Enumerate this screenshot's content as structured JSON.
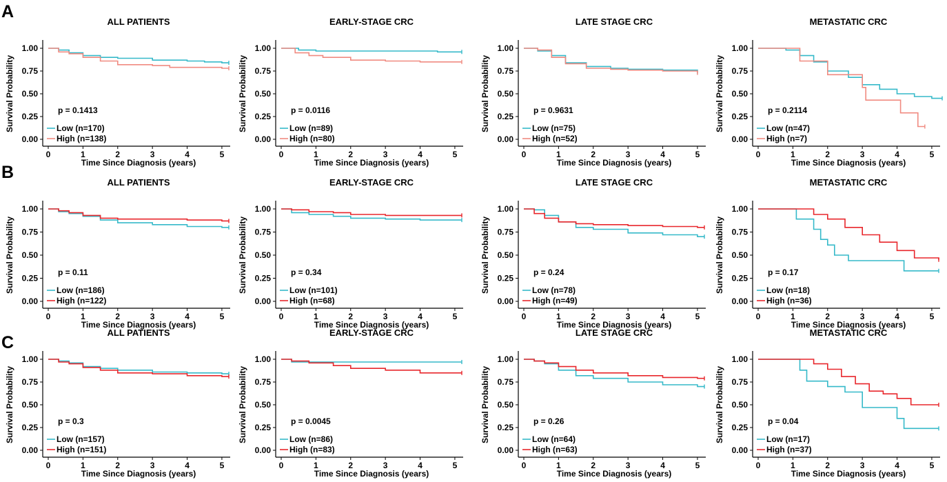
{
  "figure": {
    "panel_letters": [
      "A",
      "B",
      "C"
    ],
    "colors": {
      "low": "#35b9c9",
      "high_row_a": "#f08a80",
      "high_rows_bc": "#e8262b"
    },
    "x_axis_label": "Time Since Diagnosis (years)",
    "y_axis_label": "Survival Probability",
    "x_ticks": [
      "0",
      "1",
      "2",
      "3",
      "4",
      "5"
    ],
    "y_ticks": [
      "0.00",
      "0.25",
      "0.50",
      "0.75",
      "1.00"
    ]
  },
  "chart_data": [
    {
      "id": "A-all",
      "row": "A",
      "col": 0,
      "type": "line",
      "title": "ALL PATIENTS",
      "pvalue": "p = 0.1413",
      "xlabel": "Time Since Diagnosis (years)",
      "ylabel": "Survival Probability",
      "xlim": [
        0,
        5.2
      ],
      "ylim": [
        0,
        1
      ],
      "series": [
        {
          "name": "Low (n=170)",
          "color": "#35b9c9",
          "x": [
            0,
            0.3,
            0.6,
            1.0,
            1.5,
            2.0,
            3.0,
            4.0,
            4.5,
            5.0,
            5.2
          ],
          "y": [
            1.0,
            0.98,
            0.95,
            0.92,
            0.9,
            0.89,
            0.87,
            0.86,
            0.85,
            0.84,
            0.84
          ]
        },
        {
          "name": "High (n=138)",
          "color": "#f08a80",
          "x": [
            0,
            0.3,
            0.6,
            1.0,
            1.5,
            2.0,
            3.0,
            3.5,
            4.0,
            5.0,
            5.2
          ],
          "y": [
            1.0,
            0.96,
            0.94,
            0.9,
            0.86,
            0.82,
            0.81,
            0.79,
            0.79,
            0.78,
            0.78
          ]
        }
      ]
    },
    {
      "id": "A-early",
      "row": "A",
      "col": 1,
      "type": "line",
      "title": "EARLY-STAGE CRC",
      "pvalue": "p = 0.0116",
      "xlabel": "Time Since Diagnosis (years)",
      "ylabel": "Survival Probability",
      "xlim": [
        0,
        5.2
      ],
      "ylim": [
        0,
        1
      ],
      "series": [
        {
          "name": "Low (n=89)",
          "color": "#35b9c9",
          "x": [
            0,
            0.5,
            1.0,
            2.0,
            3.0,
            4.5,
            5.2
          ],
          "y": [
            1.0,
            0.98,
            0.97,
            0.97,
            0.97,
            0.96,
            0.96
          ]
        },
        {
          "name": "High (n=80)",
          "color": "#f08a80",
          "x": [
            0,
            0.4,
            0.8,
            1.2,
            2.0,
            3.0,
            4.0,
            5.2
          ],
          "y": [
            1.0,
            0.95,
            0.92,
            0.9,
            0.87,
            0.86,
            0.85,
            0.85
          ]
        }
      ]
    },
    {
      "id": "A-late",
      "row": "A",
      "col": 2,
      "type": "line",
      "title": "LATE STAGE CRC",
      "pvalue": "p = 0.9631",
      "xlabel": "Time Since Diagnosis (years)",
      "ylabel": "Survival Probability",
      "xlim": [
        0,
        5.2
      ],
      "ylim": [
        0,
        1
      ],
      "series": [
        {
          "name": "Low (n=75)",
          "color": "#35b9c9",
          "x": [
            0,
            0.4,
            0.8,
            1.2,
            1.8,
            2.5,
            3.0,
            4.0,
            5.0
          ],
          "y": [
            1.0,
            0.97,
            0.92,
            0.84,
            0.8,
            0.78,
            0.77,
            0.76,
            0.74
          ]
        },
        {
          "name": "High (n=52)",
          "color": "#f08a80",
          "x": [
            0,
            0.4,
            0.8,
            1.2,
            1.8,
            2.5,
            3.0,
            4.0,
            5.0
          ],
          "y": [
            1.0,
            0.98,
            0.9,
            0.83,
            0.78,
            0.77,
            0.76,
            0.75,
            0.73
          ]
        }
      ]
    },
    {
      "id": "A-meta",
      "row": "A",
      "col": 3,
      "type": "line",
      "title": "METASTATIC CRC",
      "pvalue": "p = 0.2114",
      "xlabel": "Time Since Diagnosis (years)",
      "ylabel": "Survival Probability",
      "xlim": [
        0,
        5.2
      ],
      "ylim": [
        0,
        1
      ],
      "series": [
        {
          "name": "Low (n=47)",
          "color": "#35b9c9",
          "x": [
            0,
            0.8,
            1.2,
            1.6,
            2.0,
            2.6,
            3.0,
            3.5,
            4.0,
            4.5,
            5.0,
            5.3
          ],
          "y": [
            1.0,
            0.98,
            0.92,
            0.85,
            0.75,
            0.68,
            0.6,
            0.55,
            0.5,
            0.47,
            0.45,
            0.45
          ]
        },
        {
          "name": "High (n=7)",
          "color": "#f08a80",
          "x": [
            0,
            1.1,
            1.2,
            2.0,
            2.9,
            3.0,
            3.1,
            3.9,
            4.1,
            4.6,
            4.8
          ],
          "y": [
            1.0,
            1.0,
            0.86,
            0.71,
            0.71,
            0.57,
            0.43,
            0.43,
            0.29,
            0.14,
            0.14
          ]
        }
      ]
    },
    {
      "id": "B-all",
      "row": "B",
      "col": 0,
      "type": "line",
      "title": "ALL PATIENTS",
      "pvalue": "p = 0.11",
      "xlabel": "Time Since Diagnosis (years)",
      "ylabel": "Survival Probability",
      "xlim": [
        0,
        5.2
      ],
      "ylim": [
        0,
        1
      ],
      "series": [
        {
          "name": "Low (n=186)",
          "color": "#35b9c9",
          "x": [
            0,
            0.3,
            0.6,
            1.0,
            1.5,
            2.0,
            3.0,
            4.0,
            5.0,
            5.2
          ],
          "y": [
            1.0,
            0.97,
            0.95,
            0.92,
            0.88,
            0.85,
            0.83,
            0.81,
            0.8,
            0.8
          ]
        },
        {
          "name": "High (n=122)",
          "color": "#e8262b",
          "x": [
            0,
            0.3,
            0.6,
            1.0,
            1.5,
            2.0,
            3.0,
            4.0,
            5.0,
            5.2
          ],
          "y": [
            1.0,
            0.98,
            0.96,
            0.93,
            0.9,
            0.89,
            0.89,
            0.88,
            0.87,
            0.87
          ]
        }
      ]
    },
    {
      "id": "B-early",
      "row": "B",
      "col": 1,
      "type": "line",
      "title": "EARLY-STAGE CRC",
      "pvalue": "p = 0.34",
      "xlabel": "Time Since Diagnosis (years)",
      "ylabel": "Survival Probability",
      "xlim": [
        0,
        5.2
      ],
      "ylim": [
        0,
        1
      ],
      "series": [
        {
          "name": "Low (n=101)",
          "color": "#35b9c9",
          "x": [
            0,
            0.3,
            0.8,
            1.5,
            2.0,
            3.0,
            4.0,
            5.2
          ],
          "y": [
            1.0,
            0.96,
            0.94,
            0.92,
            0.9,
            0.89,
            0.88,
            0.88
          ]
        },
        {
          "name": "High (n=68)",
          "color": "#e8262b",
          "x": [
            0,
            0.3,
            0.8,
            1.5,
            2.0,
            3.0,
            4.0,
            5.2
          ],
          "y": [
            1.0,
            0.99,
            0.97,
            0.96,
            0.94,
            0.93,
            0.93,
            0.93
          ]
        }
      ]
    },
    {
      "id": "B-late",
      "row": "B",
      "col": 2,
      "type": "line",
      "title": "LATE STAGE CRC",
      "pvalue": "p = 0.24",
      "xlabel": "Time Since Diagnosis (years)",
      "ylabel": "Survival Probability",
      "xlim": [
        0,
        5.2
      ],
      "ylim": [
        0,
        1
      ],
      "series": [
        {
          "name": "Low (n=78)",
          "color": "#35b9c9",
          "x": [
            0,
            0.3,
            0.6,
            1.0,
            1.5,
            2.0,
            3.0,
            4.0,
            5.0,
            5.2
          ],
          "y": [
            1.0,
            0.99,
            0.93,
            0.86,
            0.8,
            0.78,
            0.74,
            0.72,
            0.7,
            0.7
          ]
        },
        {
          "name": "High (n=49)",
          "color": "#e8262b",
          "x": [
            0,
            0.3,
            0.6,
            1.0,
            1.5,
            2.0,
            3.0,
            4.0,
            5.0,
            5.2
          ],
          "y": [
            1.0,
            0.95,
            0.9,
            0.86,
            0.84,
            0.83,
            0.82,
            0.81,
            0.8,
            0.8
          ]
        }
      ]
    },
    {
      "id": "B-meta",
      "row": "B",
      "col": 3,
      "type": "line",
      "title": "METASTATIC CRC",
      "pvalue": "p = 0.17",
      "xlabel": "Time Since Diagnosis (years)",
      "ylabel": "Survival Probability",
      "xlim": [
        0,
        5.2
      ],
      "ylim": [
        0,
        1
      ],
      "series": [
        {
          "name": "Low (n=18)",
          "color": "#35b9c9",
          "x": [
            0,
            1.0,
            1.1,
            1.6,
            1.8,
            2.0,
            2.2,
            2.6,
            3.9,
            4.2,
            5.2
          ],
          "y": [
            1.0,
            1.0,
            0.89,
            0.78,
            0.67,
            0.61,
            0.5,
            0.44,
            0.44,
            0.33,
            0.33
          ]
        },
        {
          "name": "High (n=36)",
          "color": "#e8262b",
          "x": [
            0,
            1.2,
            1.6,
            2.0,
            2.5,
            3.0,
            3.5,
            4.0,
            4.5,
            5.2
          ],
          "y": [
            1.0,
            1.0,
            0.94,
            0.89,
            0.8,
            0.72,
            0.64,
            0.55,
            0.47,
            0.45
          ]
        }
      ]
    },
    {
      "id": "C-all",
      "row": "C",
      "col": 0,
      "type": "line",
      "title": "ALL PATIENTS",
      "pvalue": "p = 0.3",
      "xlabel": "Time Since Diagnosis (years)",
      "ylabel": "Survival Probability",
      "xlim": [
        0,
        5.2
      ],
      "ylim": [
        0,
        1
      ],
      "series": [
        {
          "name": "Low (n=157)",
          "color": "#35b9c9",
          "x": [
            0,
            0.3,
            0.6,
            1.0,
            1.5,
            2.0,
            3.0,
            4.0,
            5.0,
            5.2
          ],
          "y": [
            1.0,
            0.98,
            0.96,
            0.92,
            0.9,
            0.88,
            0.86,
            0.85,
            0.84,
            0.84
          ]
        },
        {
          "name": "High (n=151)",
          "color": "#e8262b",
          "x": [
            0,
            0.3,
            0.6,
            1.0,
            1.5,
            2.0,
            3.0,
            4.0,
            5.0,
            5.2
          ],
          "y": [
            1.0,
            0.97,
            0.95,
            0.91,
            0.88,
            0.85,
            0.84,
            0.82,
            0.81,
            0.81
          ]
        }
      ]
    },
    {
      "id": "C-early",
      "row": "C",
      "col": 1,
      "type": "line",
      "title": "EARLY-STAGE CRC",
      "pvalue": "p = 0.0045",
      "xlabel": "Time Since Diagnosis (years)",
      "ylabel": "Survival Probability",
      "xlim": [
        0,
        5.2
      ],
      "ylim": [
        0,
        1
      ],
      "series": [
        {
          "name": "Low (n=86)",
          "color": "#35b9c9",
          "x": [
            0,
            0.3,
            1.0,
            2.0,
            3.0,
            4.0,
            5.2
          ],
          "y": [
            1.0,
            0.97,
            0.97,
            0.97,
            0.97,
            0.97,
            0.97
          ]
        },
        {
          "name": "High (n=83)",
          "color": "#e8262b",
          "x": [
            0,
            0.3,
            0.8,
            1.5,
            2.0,
            3.0,
            4.0,
            5.2
          ],
          "y": [
            1.0,
            0.98,
            0.96,
            0.93,
            0.9,
            0.88,
            0.85,
            0.85
          ]
        }
      ]
    },
    {
      "id": "C-late",
      "row": "C",
      "col": 2,
      "type": "line",
      "title": "LATE STAGE CRC",
      "pvalue": "p = 0.26",
      "xlabel": "Time Since Diagnosis (years)",
      "ylabel": "Survival Probability",
      "xlim": [
        0,
        5.2
      ],
      "ylim": [
        0,
        1
      ],
      "series": [
        {
          "name": "Low (n=64)",
          "color": "#35b9c9",
          "x": [
            0,
            0.3,
            0.6,
            1.0,
            1.5,
            2.0,
            3.0,
            4.0,
            5.0,
            5.2
          ],
          "y": [
            1.0,
            0.98,
            0.95,
            0.88,
            0.82,
            0.79,
            0.75,
            0.72,
            0.7,
            0.7
          ]
        },
        {
          "name": "High (n=63)",
          "color": "#e8262b",
          "x": [
            0,
            0.3,
            0.6,
            1.0,
            1.5,
            2.0,
            3.0,
            4.0,
            5.0,
            5.2
          ],
          "y": [
            1.0,
            0.98,
            0.96,
            0.92,
            0.88,
            0.85,
            0.82,
            0.8,
            0.79,
            0.79
          ]
        }
      ]
    },
    {
      "id": "C-meta",
      "row": "C",
      "col": 3,
      "type": "line",
      "title": "METASTATIC CRC",
      "pvalue": "p = 0.04",
      "xlabel": "Time Since Diagnosis (years)",
      "ylabel": "Survival Probability",
      "xlim": [
        0,
        5.2
      ],
      "ylim": [
        0,
        1
      ],
      "series": [
        {
          "name": "Low (n=17)",
          "color": "#35b9c9",
          "x": [
            0,
            1.0,
            1.2,
            1.4,
            2.0,
            2.5,
            3.0,
            3.8,
            4.0,
            4.2,
            5.2
          ],
          "y": [
            1.0,
            1.0,
            0.88,
            0.76,
            0.7,
            0.64,
            0.47,
            0.47,
            0.35,
            0.24,
            0.24
          ]
        },
        {
          "name": "High (n=37)",
          "color": "#e8262b",
          "x": [
            0,
            1.3,
            1.6,
            2.0,
            2.4,
            2.8,
            3.2,
            3.6,
            4.0,
            4.4,
            5.2
          ],
          "y": [
            1.0,
            1.0,
            0.95,
            0.89,
            0.81,
            0.73,
            0.65,
            0.62,
            0.57,
            0.5,
            0.5
          ]
        }
      ]
    }
  ]
}
